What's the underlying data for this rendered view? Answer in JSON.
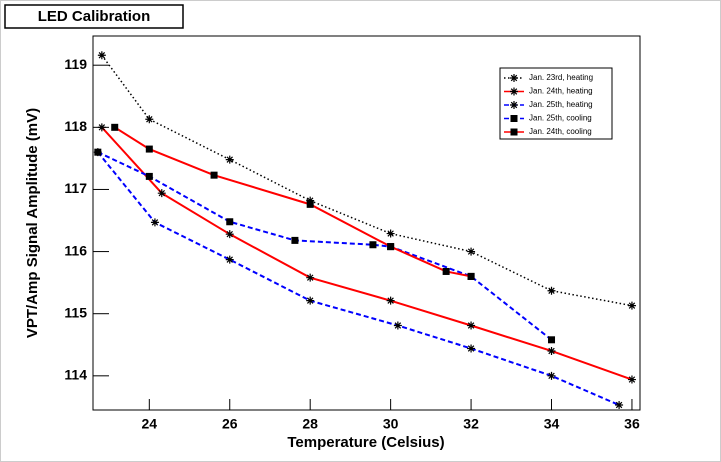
{
  "chart_data": {
    "type": "line",
    "title": "LED Calibration",
    "x_label": "Temperature (Celsius)",
    "y_label": "VPT/Amp Signal Amplitude (mV)",
    "xlim": [
      22.6,
      36.2
    ],
    "ylim": [
      113.45,
      119.47
    ],
    "xticks": [
      24,
      26,
      28,
      30,
      32,
      34,
      36
    ],
    "yticks": [
      114,
      115,
      116,
      117,
      118,
      119
    ],
    "legend": "top-right",
    "series": [
      {
        "name": "Jan. 23rd, heating",
        "color": "#000000",
        "dash": "dotted",
        "marker": "star",
        "x": [
          22.82,
          24,
          26,
          28,
          30,
          32,
          34,
          36
        ],
        "values": [
          119.16,
          118.13,
          117.48,
          116.82,
          116.29,
          116.0,
          115.37,
          115.13
        ]
      },
      {
        "name": "Jan. 24th, heating",
        "color": "#ff0000",
        "dash": "solid",
        "marker": "star",
        "x": [
          22.82,
          24.31,
          26,
          28,
          30,
          32,
          34,
          36
        ],
        "values": [
          118.0,
          116.94,
          116.28,
          115.58,
          115.21,
          114.81,
          114.4,
          113.94
        ]
      },
      {
        "name": "Jan. 25th, heating",
        "color": "#0000ff",
        "dash": "dashed",
        "marker": "star",
        "x": [
          22.72,
          24.14,
          26,
          28,
          30.18,
          32,
          34,
          35.68
        ],
        "values": [
          117.6,
          116.47,
          115.87,
          115.21,
          114.81,
          114.44,
          114.0,
          113.53
        ]
      },
      {
        "name": "Jan. 25th, cooling",
        "color": "#0000ff",
        "dash": "dashed",
        "marker": "square",
        "x": [
          22.72,
          24,
          26,
          27.62,
          29.56,
          30,
          32,
          34
        ],
        "values": [
          117.6,
          117.21,
          116.48,
          116.18,
          116.11,
          116.08,
          115.6,
          114.58
        ]
      },
      {
        "name": "Jan. 24th, cooling",
        "color": "#ff0000",
        "dash": "solid",
        "marker": "square",
        "x": [
          23.14,
          24,
          25.61,
          28,
          30,
          31.38,
          32
        ],
        "values": [
          118.0,
          117.65,
          117.23,
          116.76,
          116.08,
          115.68,
          115.6
        ]
      }
    ]
  }
}
